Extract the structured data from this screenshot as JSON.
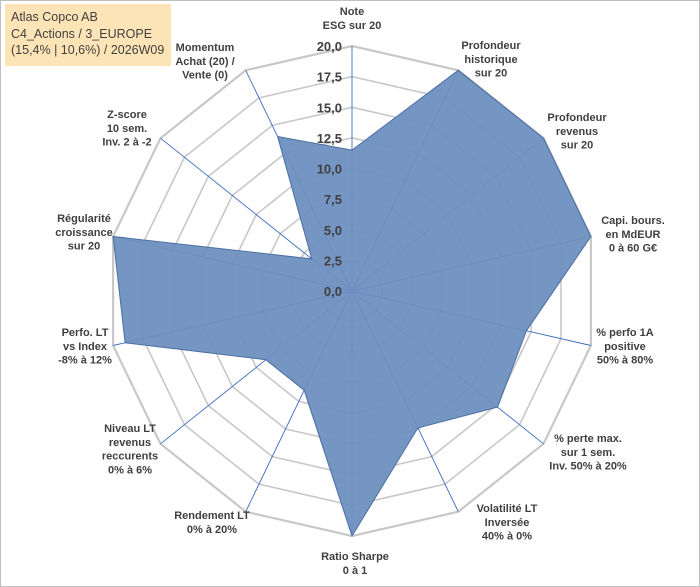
{
  "header": {
    "line1": "Atlas Copco AB",
    "line2": "C4_Actions / 3_EUROPE",
    "line3": "(15,4% | 10,6%) / 2026W09"
  },
  "chart_data": {
    "type": "radar",
    "range": [
      0,
      20
    ],
    "tick_values": [
      0,
      2.5,
      5,
      7.5,
      10,
      12.5,
      15,
      17.5,
      20
    ],
    "tick_labels": [
      "0,0",
      "2,5",
      "5,0",
      "7,5",
      "10,0",
      "12,5",
      "15,0",
      "17,5",
      "20,0"
    ],
    "axes": [
      {
        "label": [
          "Note",
          "ESG sur 20"
        ],
        "value": 11.5
      },
      {
        "label": [
          "Profondeur",
          "historique",
          "sur 20"
        ],
        "value": 20
      },
      {
        "label": [
          "Profondeur",
          "revenus",
          "sur 20"
        ],
        "value": 20
      },
      {
        "label": [
          "Capi. bours.",
          "en MdEUR",
          "0 à 60 G€"
        ],
        "value": 20
      },
      {
        "label": [
          "% perfo 1A",
          "positive",
          "50% à 80%"
        ],
        "value": 14.6
      },
      {
        "label": [
          "% perte max.",
          "sur 1 sem.",
          "Inv. 50% à 20%"
        ],
        "value": 15.2
      },
      {
        "label": [
          "Volatilité LT",
          "Inversée",
          "40% à 0%"
        ],
        "value": 12.4
      },
      {
        "label": [
          "Ratio Sharpe",
          "0 à 1"
        ],
        "value": 20
      },
      {
        "label": [
          "Rendement LT",
          "0% à 20%"
        ],
        "value": 9.0
      },
      {
        "label": [
          "Niveau LT",
          "revenus",
          "reccurents",
          "0% à 6%"
        ],
        "value": 9.0
      },
      {
        "label": [
          "Perfo. LT",
          "vs Index",
          "-8% à 12%"
        ],
        "value": 19.0
      },
      {
        "label": [
          "Régularité",
          "croissance",
          "sur 20"
        ],
        "value": 20
      },
      {
        "label": [
          "Z-score",
          "10 sem.",
          "Inv. 2 à -2"
        ],
        "value": 4.2
      },
      {
        "label": [
          "Momentum",
          "Achat (20) /",
          "Vente (0)"
        ],
        "value": 14.0
      }
    ],
    "colors": {
      "fill": "#6e8fbf",
      "stroke": "#4a6fa3",
      "grid": "#c8c8c8",
      "spoke": "#3d6bc2"
    }
  }
}
